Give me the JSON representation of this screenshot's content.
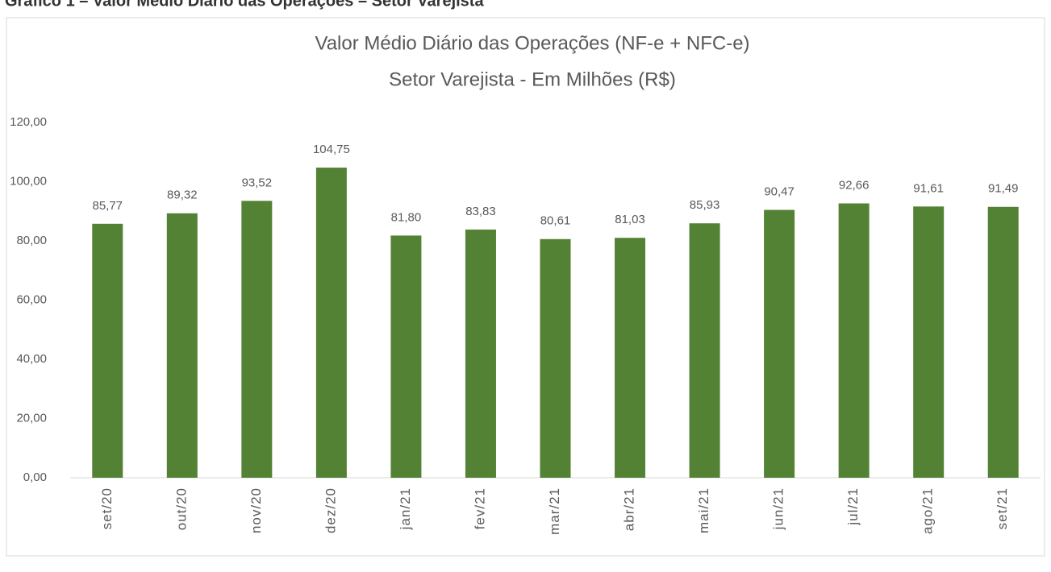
{
  "caption": "Gráfico 1 – Valor Médio Diário das Operações – Setor Varejista",
  "chart_data": {
    "type": "bar",
    "title": "Valor Médio Diário das Operações (NF-e + NFC-e)",
    "subtitle": "Setor Varejista - Em Milhões (R$)",
    "categories": [
      "set/20",
      "out/20",
      "nov/20",
      "dez/20",
      "jan/21",
      "fev/21",
      "mar/21",
      "abr/21",
      "mai/21",
      "jun/21",
      "jul/21",
      "ago/21",
      "set/21"
    ],
    "values": [
      85.77,
      89.32,
      93.52,
      104.75,
      81.8,
      83.83,
      80.61,
      81.03,
      85.93,
      90.47,
      92.66,
      91.61,
      91.49
    ],
    "value_labels": [
      "85,77",
      "89,32",
      "93,52",
      "104,75",
      "81,80",
      "83,83",
      "80,61",
      "81,03",
      "85,93",
      "90,47",
      "92,66",
      "91,61",
      "91,49"
    ],
    "color": "#548235",
    "ylim": [
      0,
      120
    ],
    "yticks": [
      {
        "value": 0,
        "label": "0,00"
      },
      {
        "value": 20,
        "label": "20,00"
      },
      {
        "value": 40,
        "label": "40,00"
      },
      {
        "value": 60,
        "label": "60,00"
      },
      {
        "value": 80,
        "label": "80,00"
      },
      {
        "value": 100,
        "label": "100,00"
      },
      {
        "value": 120,
        "label": "120,00"
      }
    ],
    "grid": false
  }
}
